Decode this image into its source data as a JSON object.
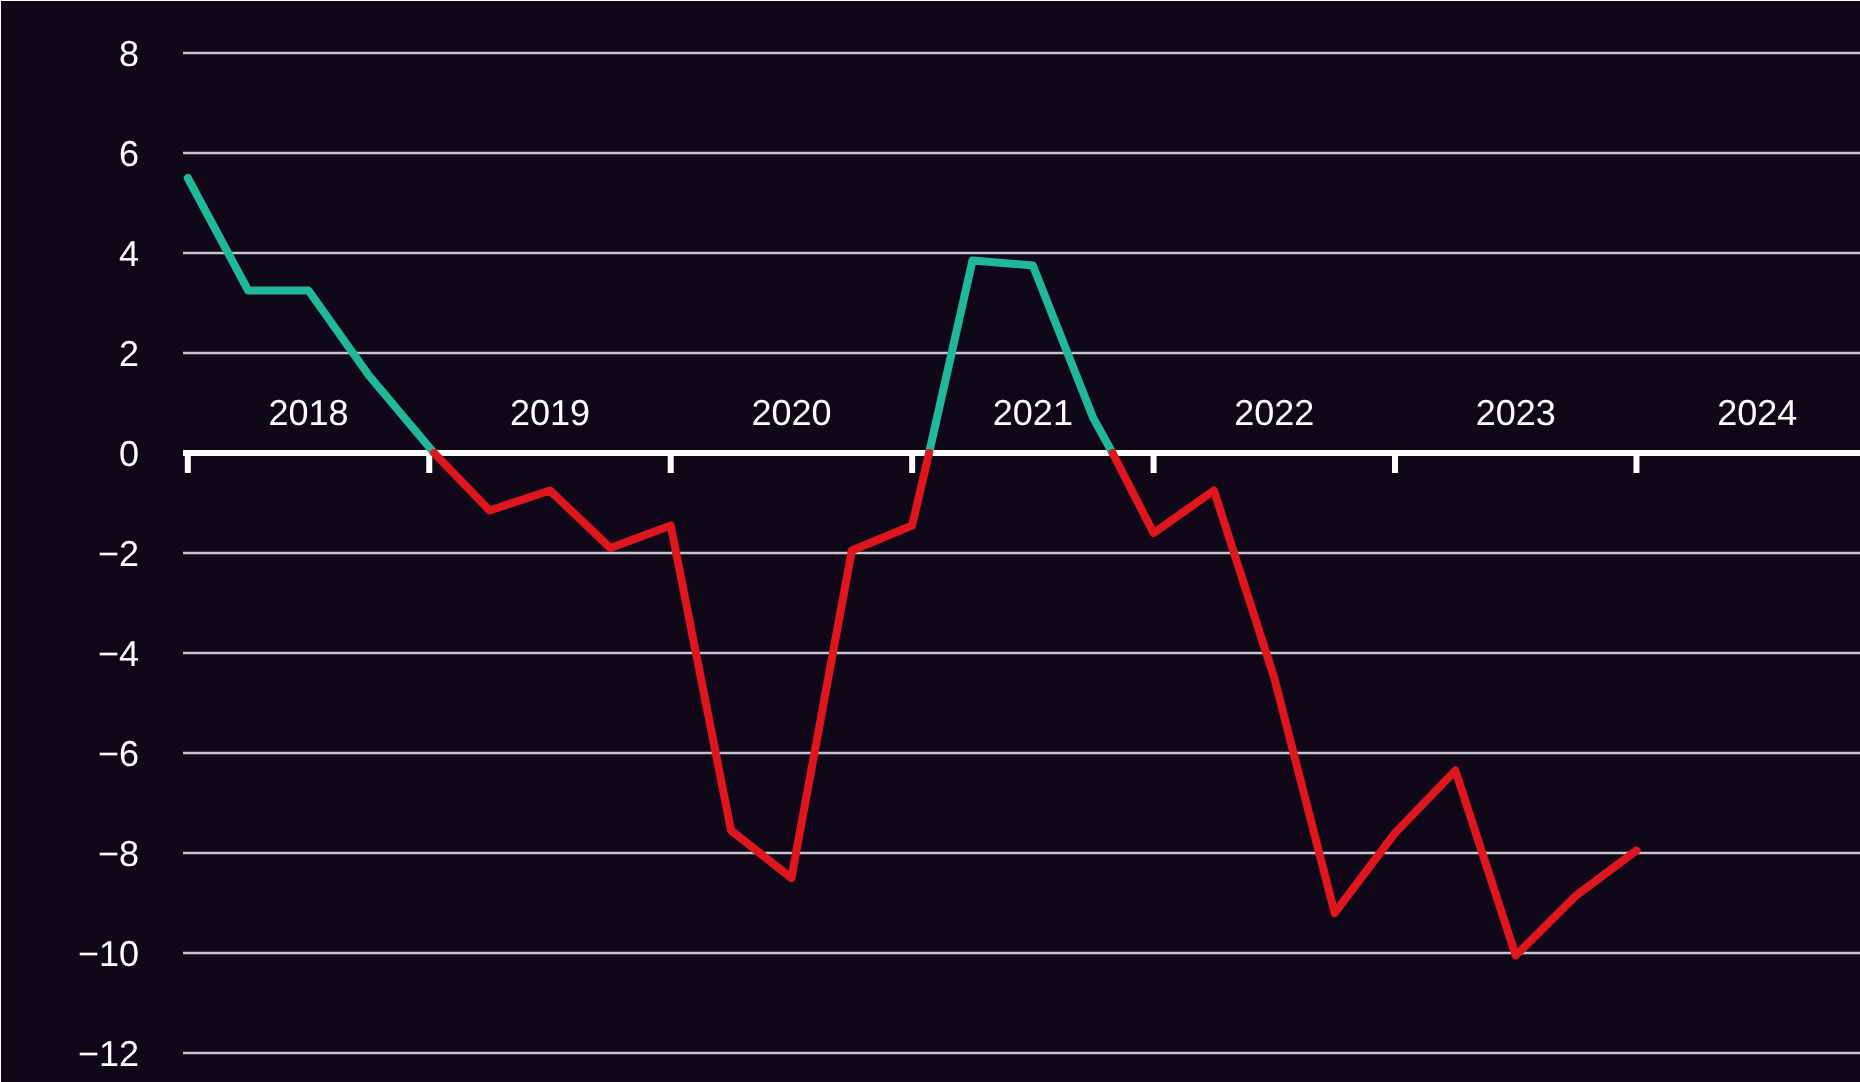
{
  "chart_data": {
    "type": "line",
    "xlim": [
      2017.98,
      2024.93
    ],
    "ylim": [
      -12.6,
      9.04
    ],
    "yticks": [
      -12,
      -10,
      -8,
      -6,
      -4,
      -2,
      0,
      2,
      4,
      6,
      8
    ],
    "xticks": [
      {
        "value": 2018,
        "label": null
      },
      {
        "value": 2019,
        "label": null
      },
      {
        "value": 2020,
        "label": null
      },
      {
        "value": 2021,
        "label": null
      },
      {
        "value": 2022,
        "label": null
      },
      {
        "value": 2023,
        "label": null
      },
      {
        "value": 2024,
        "label": null
      },
      {
        "value": 2018.5,
        "label": "2018"
      },
      {
        "value": 2019.5,
        "label": "2019"
      },
      {
        "value": 2020.5,
        "label": "2020"
      },
      {
        "value": 2021.5,
        "label": "2021"
      },
      {
        "value": 2022.5,
        "label": "2022"
      },
      {
        "value": 2023.5,
        "label": "2023"
      },
      {
        "value": 2024.5,
        "label": "2024"
      }
    ],
    "grid": "y",
    "series": [
      {
        "color": "#1fb89a",
        "x": [
          2018,
          2018.25,
          2018.5,
          2018.75,
          2019.02,
          2020.9,
          2021.07,
          2021.25,
          2021.5,
          2021.75,
          2021.83
        ],
        "values": [
          5.5,
          3.25,
          3.25,
          1.55,
          0,
          null,
          0,
          3.85,
          3.75,
          0.7,
          0
        ]
      },
      {
        "color": "#e0161e",
        "x": [
          2019.02,
          2019.25,
          2019.5,
          2019.75,
          2020,
          2020.25,
          2020.5,
          2020.75,
          2021,
          2021.07,
          2021.45,
          2021.83,
          2022,
          2022.25,
          2022.5,
          2022.75,
          2023,
          2023.25,
          2023.5,
          2023.75,
          2024
        ],
        "values": [
          0,
          -1.15,
          -0.75,
          -1.9,
          -1.45,
          -7.55,
          -8.5,
          -1.95,
          -1.45,
          0,
          null,
          0,
          -1.6,
          -0.75,
          -4.5,
          -9.2,
          -7.6,
          -6.35,
          -10.05,
          -8.85,
          -7.95
        ]
      }
    ]
  }
}
